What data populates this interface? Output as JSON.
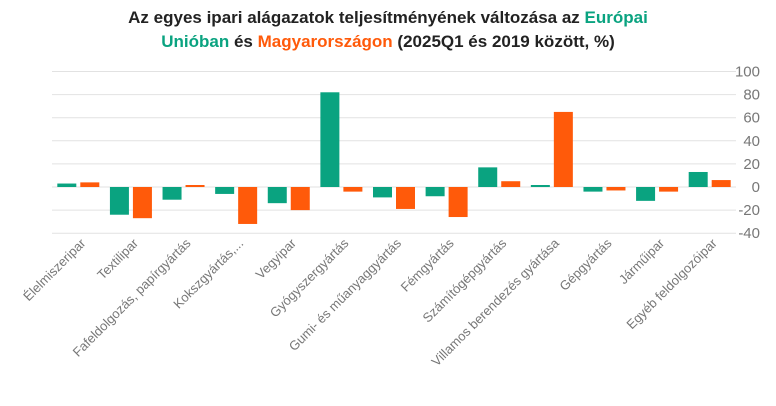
{
  "title": {
    "line1_text": "Az egyes ipari alágazatok teljesítményének változása az ",
    "line1_eu": "Európai",
    "line2_eu": "Unióban",
    "line2_mid": " és ",
    "line2_hu": "Magyarországon",
    "line2_end": " (2025Q1 és 2019 között, %)"
  },
  "colors": {
    "eu": "#0aa380",
    "hu": "#ff5a0a",
    "grid": "#e2e2e2",
    "axis": "#777777"
  },
  "chart_data": {
    "type": "bar",
    "categories": [
      "Élelmiszeripar",
      "Textilipar",
      "Fafeldolgozás, papírgyártás",
      "Kokszgyártás,...",
      "Vegyipar",
      "Gyógyszergyártás",
      "Gumi- és műanyaggyártás",
      "Fémgyártás",
      "Számítógépgyártás",
      "Villamos berendezés gyártása",
      "Gépgyártás",
      "Járműipar",
      "Egyéb feldolgozóipar"
    ],
    "series": [
      {
        "name": "Európai Unióban",
        "color": "#0aa380",
        "values": [
          3,
          -24,
          -11,
          -6,
          -14,
          82,
          -9,
          -8,
          17,
          1,
          -4,
          -12,
          13
        ]
      },
      {
        "name": "Magyarországon",
        "color": "#ff5a0a",
        "values": [
          4,
          -27,
          1,
          -32,
          -20,
          -4,
          -19,
          -26,
          5,
          65,
          -3,
          -4,
          6
        ]
      }
    ],
    "yticks": [
      100,
      80,
      60,
      40,
      20,
      0,
      -20,
      -40
    ],
    "ylim": [
      -40,
      100
    ],
    "grid": true,
    "legend": "none (colors encoded in title)"
  }
}
